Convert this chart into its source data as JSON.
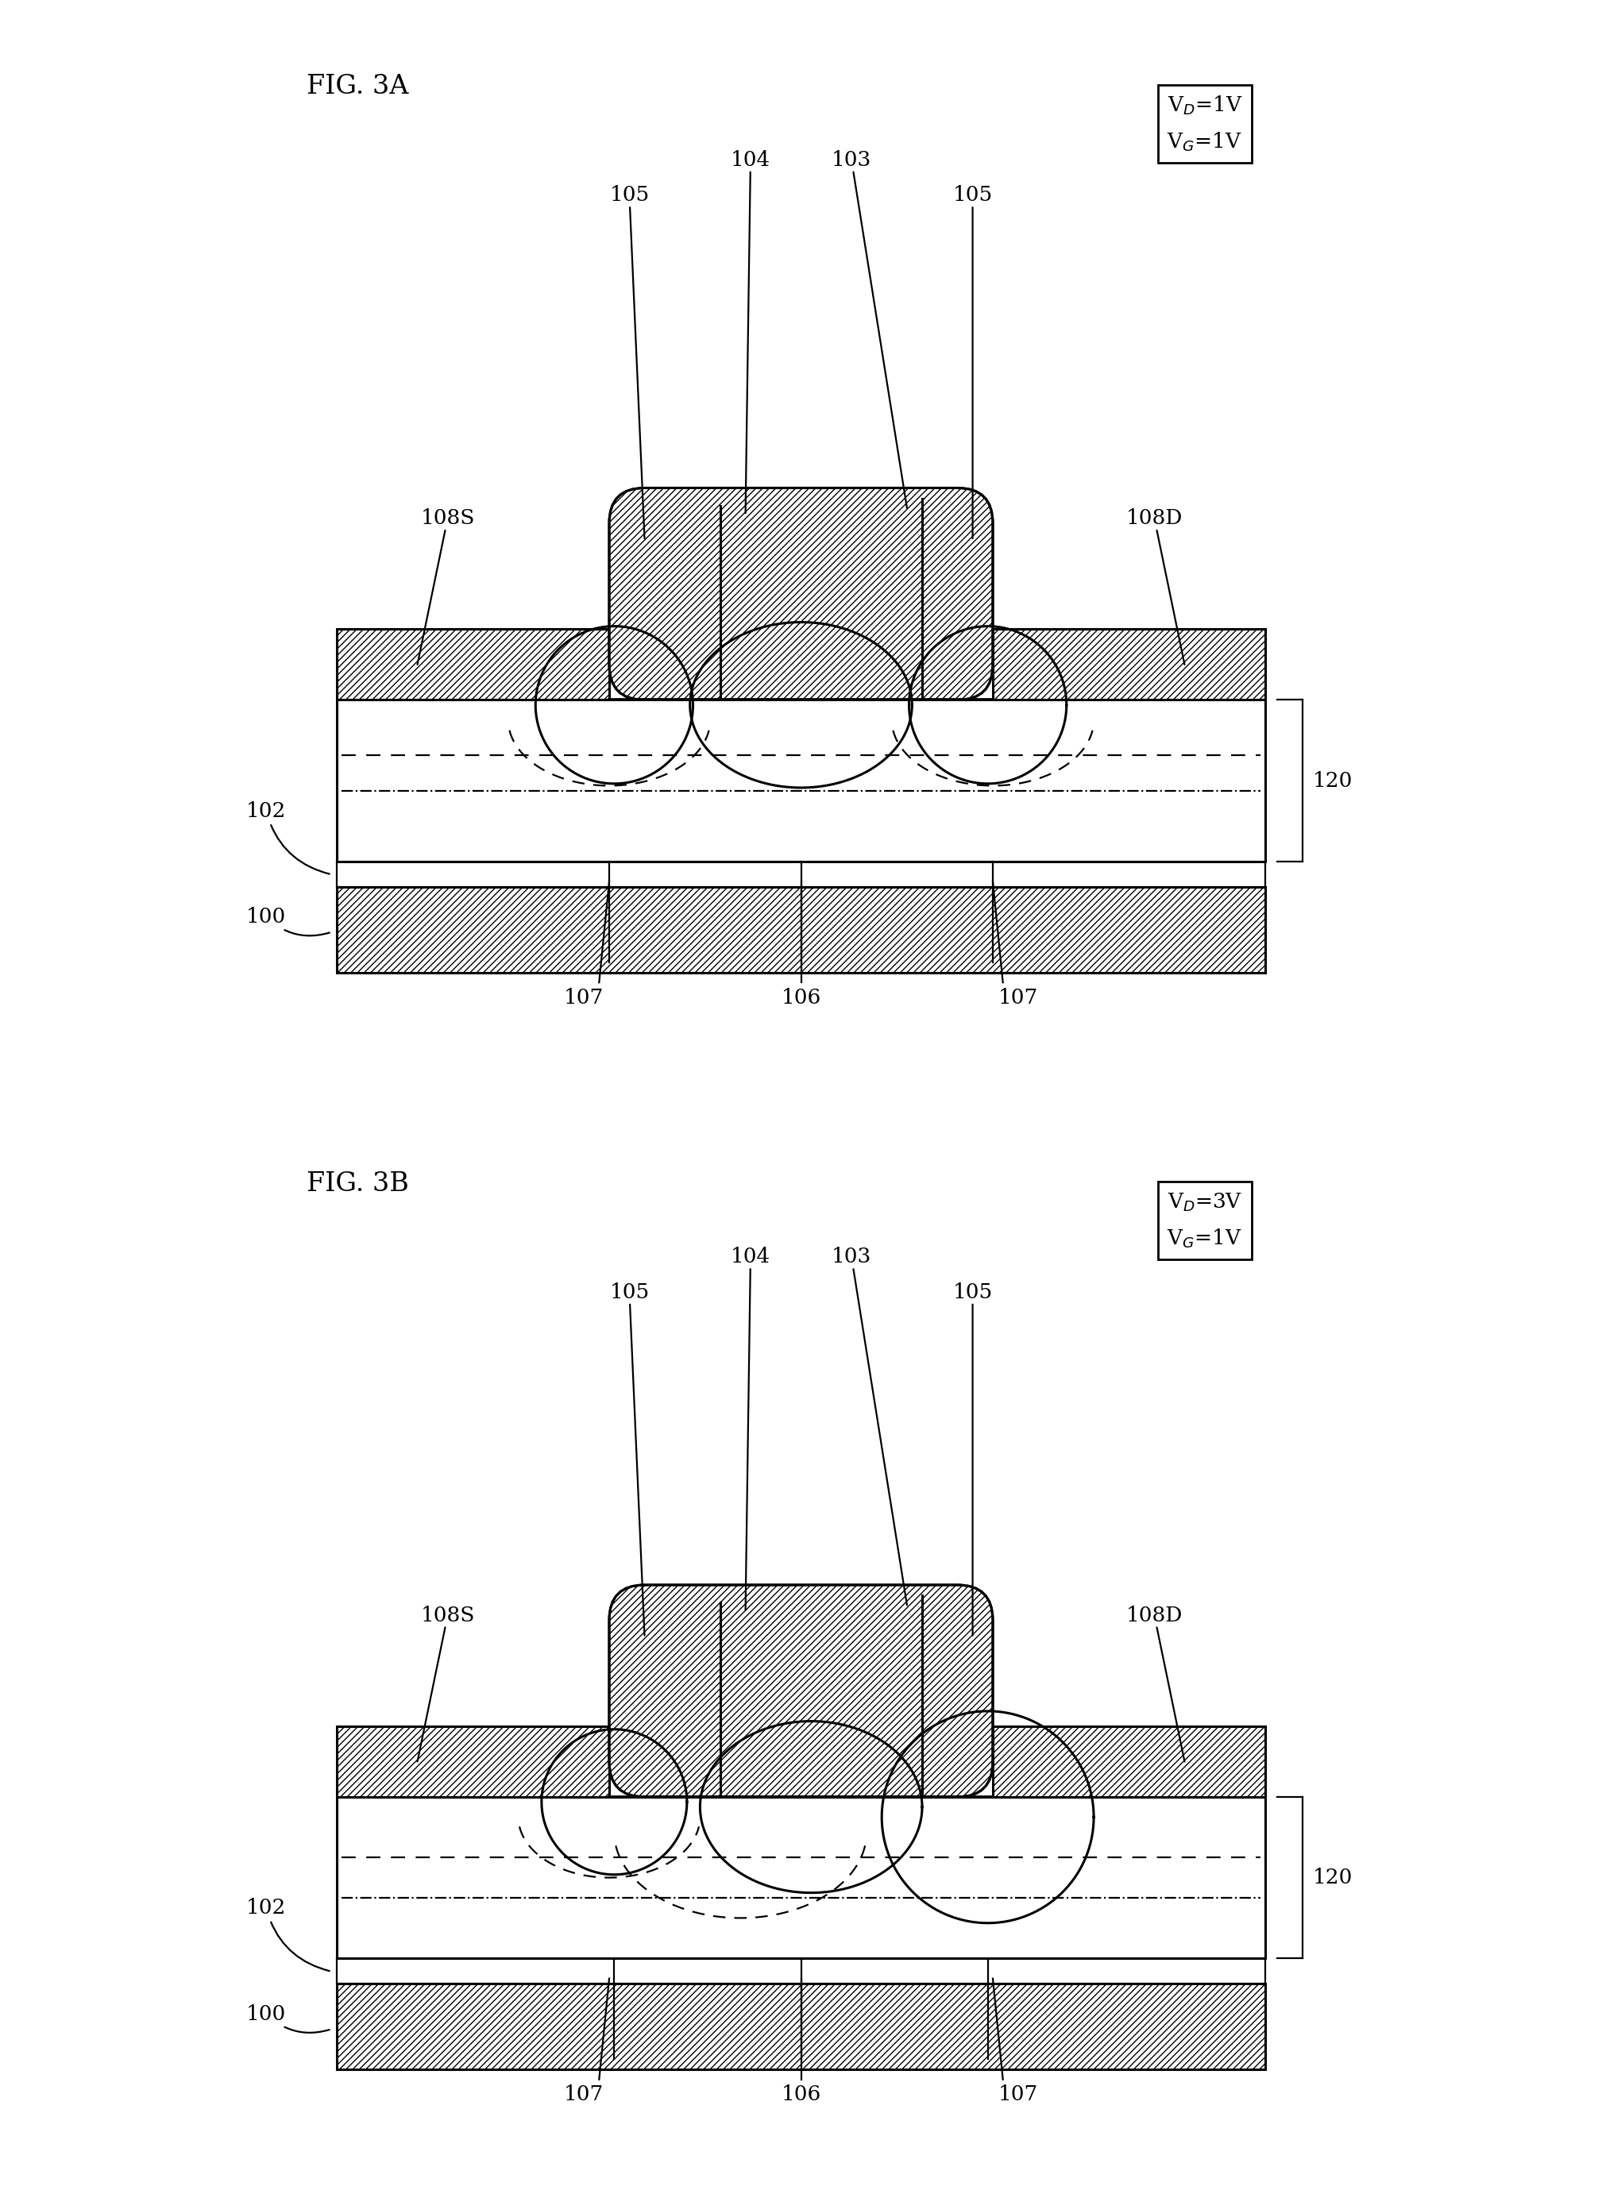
{
  "fig_title_A": "FIG. 3A",
  "fig_title_B": "FIG. 3B",
  "vd_A": "V$_{D}$=1V",
  "vg_A": "V$_{G}$=1V",
  "vd_B": "V$_{D}$=3V",
  "vg_B": "V$_{G}$=1V",
  "lw": 2.2,
  "tlw": 1.6,
  "bg": "#ffffff",
  "black": "#000000",
  "label_fs": 19,
  "title_fs": 24
}
